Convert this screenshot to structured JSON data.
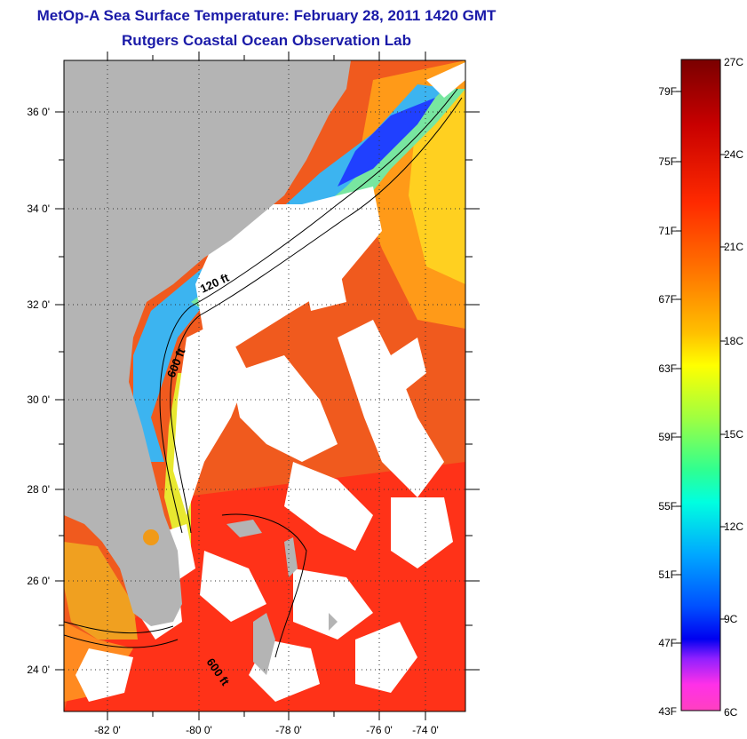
{
  "header": {
    "title": "MetOp-A Sea Surface Temperature:  February 28, 2011 1420 GMT",
    "subtitle": "Rutgers Coastal Ocean Observation Lab"
  },
  "map": {
    "lat_labels": [
      "36 0'",
      "34 0'",
      "32 0'",
      "30 0'",
      "28 0'",
      "26 0'",
      "24 0'"
    ],
    "lon_labels": [
      "-82 0'",
      "-80 0'",
      "-78 0'",
      "-76 0'",
      "-74 0'"
    ],
    "contour_labels": [
      "120 ft",
      "600 ft",
      "600 ft"
    ],
    "colors": {
      "land": "#b4b4b4",
      "cloud": "#ffffff",
      "warm_water": "#f0501e",
      "gulfstream": "#ff3c14",
      "coastal_cold": "#3cb4f0",
      "nearshore_green": "#78e6a0"
    }
  },
  "colorbar": {
    "fahrenheit_labels": [
      "79F",
      "75F",
      "71F",
      "67F",
      "63F",
      "59F",
      "55F",
      "51F",
      "47F",
      "43F"
    ],
    "celsius_labels": [
      "27C",
      "24C",
      "21C",
      "18C",
      "15C",
      "12C",
      "9C",
      "6C"
    ],
    "range_c": [
      6,
      27
    ],
    "gradient_stops": [
      "#7a0000",
      "#e00000",
      "#ff4000",
      "#ff9000",
      "#ffe000",
      "#c0ff40",
      "#40ff80",
      "#00f0e0",
      "#00b0ff",
      "#0060ff",
      "#0000ff",
      "#a000ff",
      "#ff40e0",
      "#ff40c0"
    ]
  }
}
